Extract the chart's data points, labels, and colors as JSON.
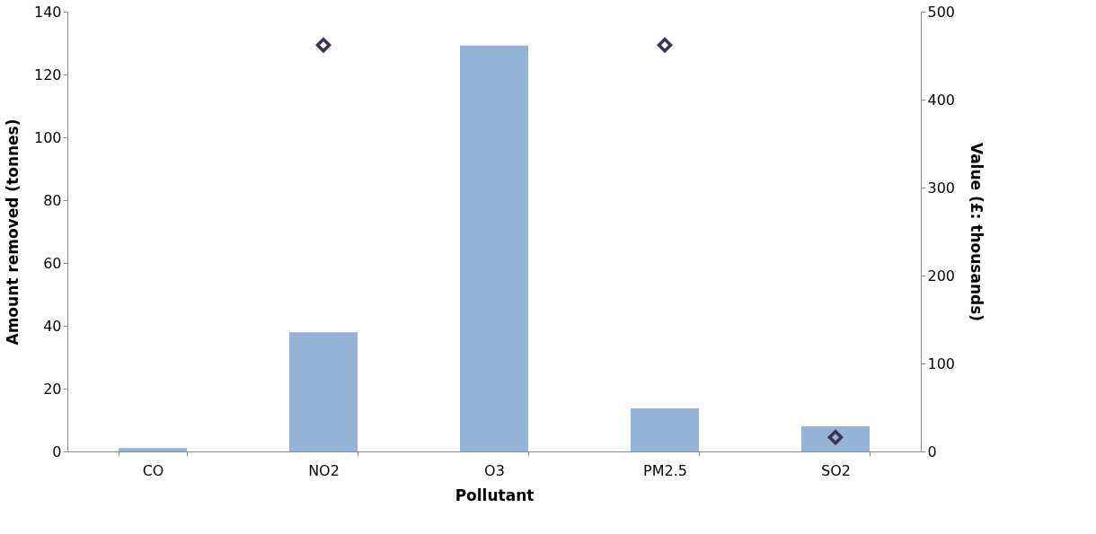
{
  "chart_data": {
    "type": "bar",
    "xlabel": "Pollutant",
    "ylabel": "Amount removed (tonnes)",
    "y2label": "Value  (£: thousands)",
    "categories": [
      "CO",
      "NO2",
      "O3",
      "PM2.5",
      "SO2"
    ],
    "series": [
      {
        "color": "#95b3d7",
        "values": [
          1.1,
          37.9,
          129.2,
          13.7,
          8.0
        ]
      },
      {
        "type": "scatter",
        "axis": "y2",
        "color": "#3f3151",
        "marker": "diamond",
        "values": [
          null,
          462,
          null,
          462,
          16
        ]
      }
    ],
    "ylim": [
      0,
      140
    ],
    "yticks": [
      0,
      20,
      40,
      60,
      80,
      100,
      120,
      140
    ],
    "y2lim": [
      0,
      500
    ],
    "y2ticks": [
      0,
      100,
      200,
      300,
      400,
      500
    ],
    "grid": false
  }
}
